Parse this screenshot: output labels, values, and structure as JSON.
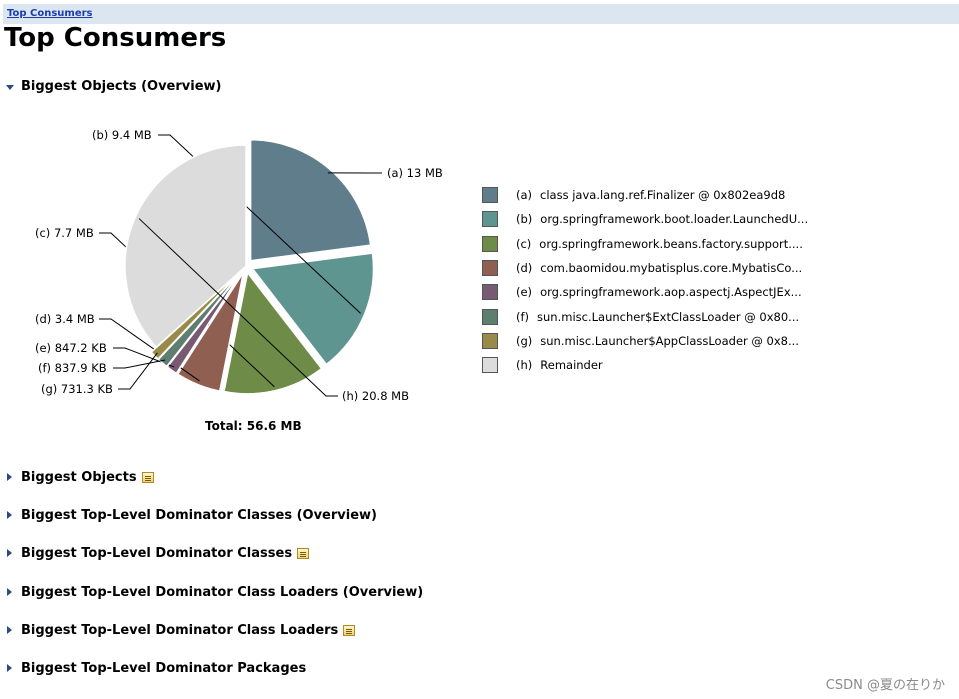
{
  "breadcrumb": {
    "label": "Top Consumers"
  },
  "page_title": "Top Consumers",
  "overview_section": {
    "label": "Biggest Objects (Overview)"
  },
  "chart_data": {
    "type": "pie",
    "total_label": "Total: 56.6 MB",
    "slices": [
      {
        "letter": "(a)",
        "value_mb": 13.0,
        "value_label": "13 MB",
        "legend": "class java.lang.ref.Finalizer @ 0x802ea9d8",
        "color": "#607d8b"
      },
      {
        "letter": "(b)",
        "value_mb": 9.4,
        "value_label": "9.4 MB",
        "legend": "org.springframework.boot.loader.LaunchedU...",
        "color": "#5f9590"
      },
      {
        "letter": "(c)",
        "value_mb": 7.7,
        "value_label": "7.7 MB",
        "legend": "org.springframework.beans.factory.support....",
        "color": "#6e8c48"
      },
      {
        "letter": "(d)",
        "value_mb": 3.4,
        "value_label": "3.4 MB",
        "legend": "com.baomidou.mybatisplus.core.MybatisCo...",
        "color": "#8f5f52"
      },
      {
        "letter": "(e)",
        "value_mb": 0.827,
        "value_label": "847.2 KB",
        "legend": "org.springframework.aop.aspectj.AspectJEx...",
        "color": "#785a72"
      },
      {
        "letter": "(f)",
        "value_mb": 0.818,
        "value_label": "837.9 KB",
        "legend": "sun.misc.Launcher$ExtClassLoader @ 0x80...",
        "color": "#5f7e72"
      },
      {
        "letter": "(g)",
        "value_mb": 0.714,
        "value_label": "731.3 KB",
        "legend": "sun.misc.Launcher$AppClassLoader @ 0x8...",
        "color": "#9a8a4a"
      },
      {
        "letter": "(h)",
        "value_mb": 20.8,
        "value_label": "20.8 MB",
        "legend": "Remainder",
        "color": "#dcdcdc"
      }
    ]
  },
  "sections": [
    {
      "label": "Biggest Objects",
      "detail_icon": "details-icon"
    },
    {
      "label": "Biggest Top-Level Dominator Classes (Overview)",
      "detail_icon": ""
    },
    {
      "label": "Biggest Top-Level Dominator Classes",
      "detail_icon": "details-icon"
    },
    {
      "label": "Biggest Top-Level Dominator Class Loaders (Overview)",
      "detail_icon": ""
    },
    {
      "label": "Biggest Top-Level Dominator Class Loaders",
      "detail_icon": "details-icon"
    },
    {
      "label": "Biggest Top-Level Dominator Packages",
      "detail_icon": ""
    }
  ],
  "watermark": "CSDN @夏の在りか"
}
